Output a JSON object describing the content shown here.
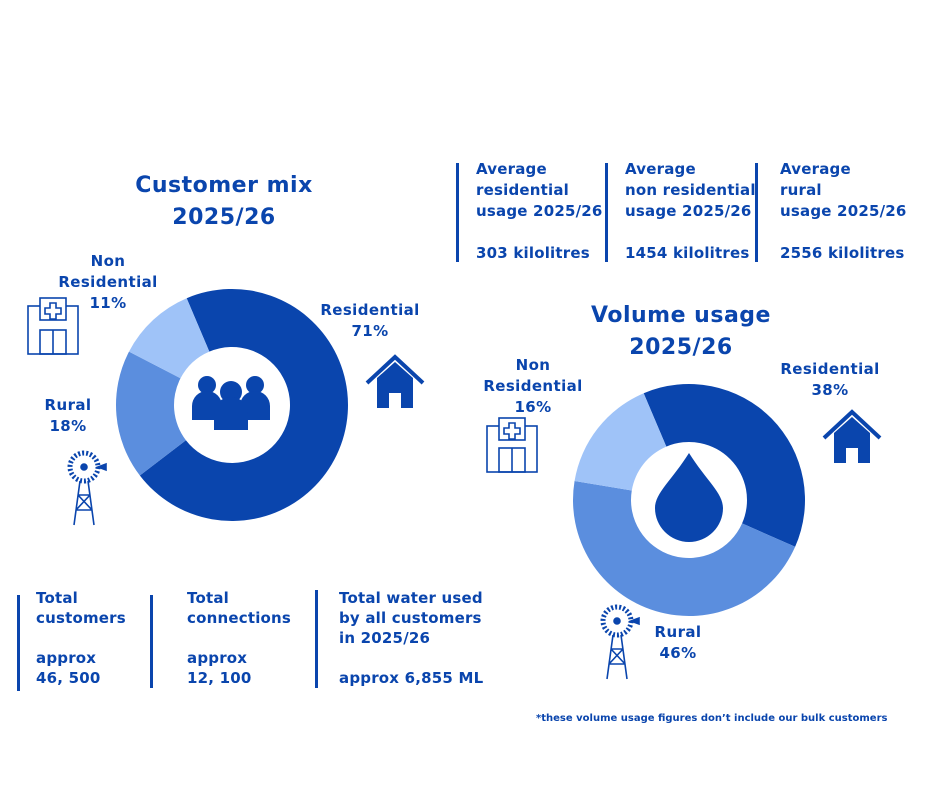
{
  "chart_data": [
    {
      "type": "donut",
      "title": "Customer mix",
      "subtitle": "2025/26",
      "categories": [
        "Residential",
        "Rural",
        "Non Residential"
      ],
      "values": [
        71,
        18,
        11
      ],
      "value_labels": [
        "71%",
        "18%",
        "11%"
      ],
      "colors": [
        "#0a45ad",
        "#5b8ede",
        "#9fc3f8"
      ]
    },
    {
      "type": "donut",
      "title": "Volume usage",
      "subtitle": "2025/26",
      "categories": [
        "Residential",
        "Rural",
        "Non Residential"
      ],
      "values": [
        38,
        46,
        16
      ],
      "value_labels": [
        "38%",
        "46%",
        "16%"
      ],
      "colors": [
        "#0a45ad",
        "#5b8ede",
        "#9fc3f8"
      ]
    }
  ],
  "usage_stats": [
    {
      "heading": [
        "Average",
        "residential",
        "usage 2025/26"
      ],
      "value": "303 kilolitres"
    },
    {
      "heading": [
        "Average",
        "non residential",
        "usage 2025/26"
      ],
      "value": "1454 kilolitres"
    },
    {
      "heading": [
        "Average",
        "rural",
        "usage 2025/26"
      ],
      "value": "2556 kilolitres"
    }
  ],
  "customer_stats": [
    {
      "heading": [
        "Total",
        "customers"
      ],
      "value": [
        "approx",
        "46, 500"
      ]
    },
    {
      "heading": [
        "Total",
        "connections"
      ],
      "value": [
        "approx",
        "12, 100"
      ]
    },
    {
      "heading": [
        "Total water used",
        "by all customers",
        "in 2025/26"
      ],
      "value": [
        "approx 6,855 ML"
      ]
    }
  ],
  "footnote": "*these volume usage figures don’t include our bulk customers"
}
